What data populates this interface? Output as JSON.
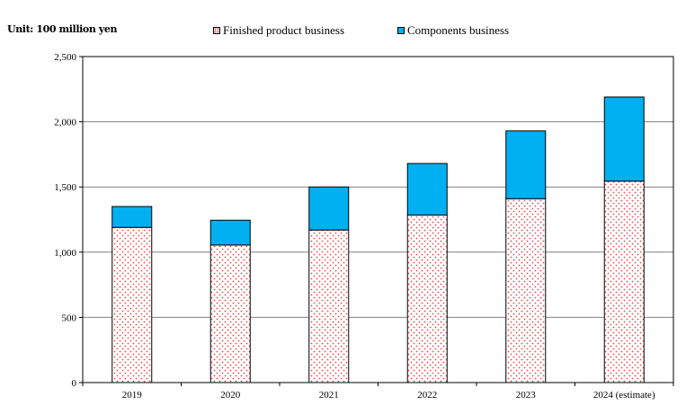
{
  "unit_label": "Unit: 100 million yen",
  "legend": {
    "finished": "Finished product business",
    "components": "Components business"
  },
  "colors": {
    "finished_dots": "#e84848",
    "finished_bg": "#ffffff",
    "components": "#00b0f0",
    "grid": "#808080"
  },
  "chart_data": {
    "type": "bar",
    "stacked": true,
    "categories": [
      "2019",
      "2020",
      "2021",
      "2022",
      "2023",
      "2024 (estimate)"
    ],
    "series": [
      {
        "name": "Finished product business",
        "values": [
          1190,
          1055,
          1170,
          1285,
          1410,
          1545
        ]
      },
      {
        "name": "Components business",
        "values": [
          160,
          190,
          330,
          395,
          520,
          645
        ]
      }
    ],
    "ylim": [
      0,
      2500
    ],
    "yticks": [
      0,
      500,
      1000,
      1500,
      2000,
      2500
    ],
    "ytick_labels": [
      "0",
      "500",
      "1,000",
      "1,500",
      "2,000",
      "2,500"
    ],
    "grid": true,
    "legend_position": "top"
  }
}
